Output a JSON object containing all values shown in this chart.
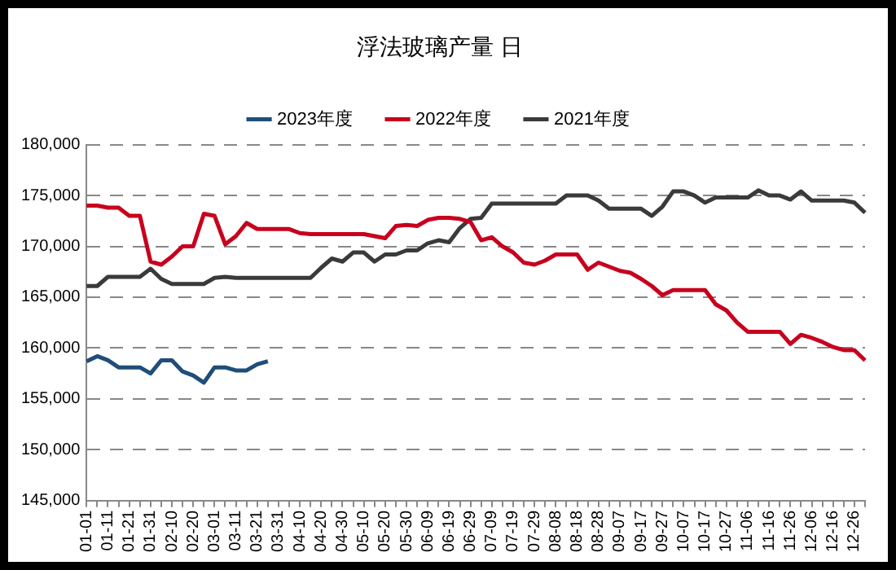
{
  "chart_data": {
    "type": "line",
    "title": "浮法玻璃产量 日",
    "categories": [
      "01-01",
      null,
      "01-11",
      null,
      "01-21",
      null,
      "01-31",
      null,
      "02-10",
      null,
      "02-20",
      null,
      "03-01",
      null,
      "03-11",
      null,
      "03-21",
      null,
      "03-31",
      null,
      "04-10",
      null,
      "04-20",
      null,
      "04-30",
      null,
      "05-10",
      null,
      "05-20",
      null,
      "05-30",
      null,
      "06-09",
      null,
      "06-19",
      null,
      "06-29",
      null,
      "07-09",
      null,
      "07-19",
      null,
      "07-29",
      null,
      "08-08",
      null,
      "08-18",
      null,
      "08-28",
      null,
      "09-07",
      null,
      "09-17",
      null,
      "09-27",
      null,
      "10-07",
      null,
      "10-17",
      null,
      "10-27",
      null,
      "11-06",
      null,
      "11-16",
      null,
      "11-26",
      null,
      "12-06",
      null,
      "12-16",
      null,
      "12-26",
      null
    ],
    "series": [
      {
        "name": "2023年度",
        "color": "#1f4e79",
        "values": [
          158700,
          159200,
          158800,
          158100,
          158100,
          158100,
          157500,
          158800,
          158800,
          157700,
          157300,
          156600,
          158100,
          158100,
          157800,
          157800,
          158400,
          158700,
          null,
          null,
          null,
          null,
          null,
          null,
          null,
          null,
          null,
          null,
          null,
          null,
          null,
          null,
          null,
          null,
          null,
          null,
          null,
          null,
          null,
          null,
          null,
          null,
          null,
          null,
          null,
          null,
          null,
          null,
          null,
          null,
          null,
          null,
          null,
          null,
          null,
          null,
          null,
          null,
          null,
          null,
          null,
          null,
          null,
          null,
          null,
          null,
          null,
          null,
          null,
          null,
          null,
          null,
          null,
          null
        ]
      },
      {
        "name": "2022年度",
        "color": "#c8001e",
        "values": [
          174000,
          174000,
          173800,
          173800,
          173000,
          173000,
          168500,
          168200,
          169000,
          170000,
          170000,
          173200,
          173000,
          170200,
          171000,
          172300,
          171700,
          171700,
          171700,
          171700,
          171300,
          171200,
          171200,
          171200,
          171200,
          171200,
          171200,
          171000,
          170800,
          172000,
          172100,
          172000,
          172600,
          172800,
          172800,
          172700,
          172400,
          170600,
          170900,
          170000,
          169400,
          168400,
          168200,
          168600,
          169200,
          169200,
          169200,
          167700,
          168400,
          168000,
          167600,
          167400,
          166800,
          166100,
          165200,
          165700,
          165700,
          165700,
          165700,
          164300,
          163700,
          162500,
          161600,
          161600,
          161600,
          161600,
          160400,
          161300,
          161000,
          160600,
          160100,
          159800,
          159800,
          158800
        ]
      },
      {
        "name": "2021年度",
        "color": "#3a3a3a",
        "values": [
          166100,
          166100,
          167000,
          167000,
          167000,
          167000,
          167800,
          166800,
          166300,
          166300,
          166300,
          166300,
          166900,
          167000,
          166900,
          166900,
          166900,
          166900,
          166900,
          166900,
          166900,
          166900,
          167900,
          168800,
          168500,
          169400,
          169400,
          168500,
          169200,
          169200,
          169600,
          169600,
          170300,
          170600,
          170400,
          171800,
          172700,
          172800,
          174200,
          174200,
          174200,
          174200,
          174200,
          174200,
          174200,
          175000,
          175000,
          175000,
          174500,
          173700,
          173700,
          173700,
          173700,
          173000,
          173900,
          175400,
          175400,
          175000,
          174300,
          174800,
          174800,
          174800,
          174800,
          175500,
          175000,
          175000,
          174600,
          175400,
          174500,
          174500,
          174500,
          174500,
          174300,
          173300
        ]
      }
    ],
    "ylim": [
      145000,
      180000
    ],
    "yticks": [
      {
        "value": 145000,
        "label": "145,000"
      },
      {
        "value": 150000,
        "label": "150,000"
      },
      {
        "value": 155000,
        "label": "155,000"
      },
      {
        "value": 160000,
        "label": "160,000"
      },
      {
        "value": 165000,
        "label": "165,000"
      },
      {
        "value": 170000,
        "label": "170,000"
      },
      {
        "value": 175000,
        "label": "175,000"
      },
      {
        "value": 180000,
        "label": "180,000"
      }
    ],
    "grid": "y",
    "legend": "top",
    "marker": "none",
    "line_style": "solid"
  }
}
